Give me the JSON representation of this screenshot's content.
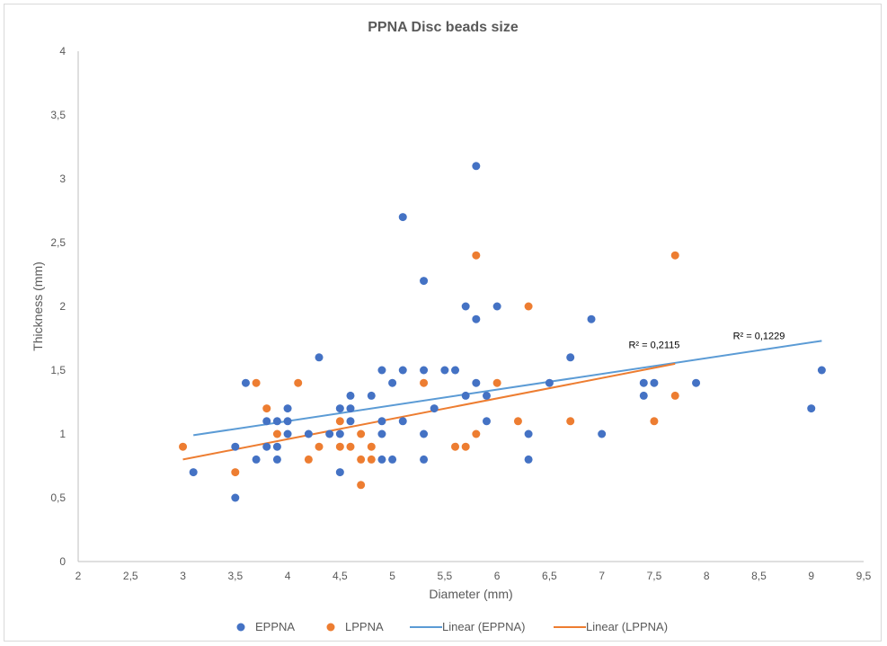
{
  "chart_data": {
    "type": "scatter",
    "title": "PPNA Disc beads size",
    "xlabel": "Diameter (mm)",
    "ylabel": "Thickness (mm)",
    "xlim": [
      2,
      9.5
    ],
    "ylim": [
      0,
      4
    ],
    "x_ticks": [
      "2",
      "2,5",
      "3",
      "3,5",
      "4",
      "4,5",
      "5",
      "5,5",
      "6",
      "6,5",
      "7",
      "7,5",
      "8",
      "8,5",
      "9",
      "9,5"
    ],
    "y_ticks": [
      "0",
      "0,5",
      "1",
      "1,5",
      "2",
      "2,5",
      "3",
      "3,5",
      "4"
    ],
    "grid": false,
    "legend_position": "bottom",
    "series": [
      {
        "name": "EPPNA",
        "color": "#4472C4",
        "points": [
          [
            3.1,
            0.7
          ],
          [
            3.5,
            0.9
          ],
          [
            3.5,
            0.5
          ],
          [
            3.6,
            1.4
          ],
          [
            3.7,
            0.8
          ],
          [
            3.8,
            1.1
          ],
          [
            3.8,
            0.9
          ],
          [
            3.9,
            1.1
          ],
          [
            3.9,
            0.9
          ],
          [
            3.9,
            0.8
          ],
          [
            4.0,
            1.2
          ],
          [
            4.0,
            1.1
          ],
          [
            4.0,
            1.0
          ],
          [
            4.2,
            1.0
          ],
          [
            4.3,
            1.6
          ],
          [
            4.4,
            1.0
          ],
          [
            4.5,
            1.2
          ],
          [
            4.5,
            1.0
          ],
          [
            4.5,
            0.7
          ],
          [
            4.6,
            1.3
          ],
          [
            4.6,
            1.2
          ],
          [
            4.6,
            1.1
          ],
          [
            4.8,
            1.3
          ],
          [
            4.9,
            1.5
          ],
          [
            4.9,
            1.1
          ],
          [
            4.9,
            1.0
          ],
          [
            4.9,
            0.8
          ],
          [
            5.0,
            1.4
          ],
          [
            5.0,
            0.8
          ],
          [
            5.1,
            2.7
          ],
          [
            5.1,
            1.5
          ],
          [
            5.1,
            1.1
          ],
          [
            5.3,
            2.2
          ],
          [
            5.3,
            1.5
          ],
          [
            5.3,
            1.0
          ],
          [
            5.3,
            0.8
          ],
          [
            5.4,
            1.2
          ],
          [
            5.5,
            1.5
          ],
          [
            5.6,
            1.5
          ],
          [
            5.7,
            2.0
          ],
          [
            5.7,
            1.3
          ],
          [
            5.8,
            3.1
          ],
          [
            5.8,
            1.9
          ],
          [
            5.8,
            1.4
          ],
          [
            5.9,
            1.3
          ],
          [
            5.9,
            1.1
          ],
          [
            6.0,
            2.0
          ],
          [
            6.3,
            1.0
          ],
          [
            6.3,
            0.8
          ],
          [
            6.5,
            1.4
          ],
          [
            6.7,
            1.6
          ],
          [
            6.9,
            1.9
          ],
          [
            7.0,
            1.0
          ],
          [
            7.4,
            1.4
          ],
          [
            7.4,
            1.3
          ],
          [
            7.5,
            1.4
          ],
          [
            7.9,
            1.4
          ],
          [
            9.0,
            1.2
          ],
          [
            9.1,
            1.5
          ]
        ]
      },
      {
        "name": "LPPNA",
        "color": "#ED7D31",
        "points": [
          [
            3.0,
            0.9
          ],
          [
            3.5,
            0.7
          ],
          [
            3.7,
            1.4
          ],
          [
            3.8,
            1.2
          ],
          [
            3.9,
            1.0
          ],
          [
            4.1,
            1.4
          ],
          [
            4.2,
            0.8
          ],
          [
            4.3,
            0.9
          ],
          [
            4.5,
            1.1
          ],
          [
            4.5,
            0.9
          ],
          [
            4.6,
            0.9
          ],
          [
            4.7,
            1.0
          ],
          [
            4.7,
            0.8
          ],
          [
            4.7,
            0.6
          ],
          [
            4.8,
            0.9
          ],
          [
            4.8,
            0.8
          ],
          [
            5.3,
            1.4
          ],
          [
            5.6,
            0.9
          ],
          [
            5.7,
            0.9
          ],
          [
            5.8,
            2.4
          ],
          [
            5.8,
            1.0
          ],
          [
            6.0,
            1.4
          ],
          [
            6.2,
            1.1
          ],
          [
            6.3,
            2.0
          ],
          [
            6.7,
            1.1
          ],
          [
            7.5,
            1.1
          ],
          [
            7.7,
            2.4
          ],
          [
            7.7,
            1.3
          ]
        ]
      }
    ],
    "trendlines": [
      {
        "name": "Linear (EPPNA)",
        "color": "#5B9BD5",
        "x": [
          3.1,
          9.1
        ],
        "y": [
          0.99,
          1.73
        ],
        "r2_label": "R² = 0,1229",
        "r2_anchor": [
          8.5,
          1.73
        ]
      },
      {
        "name": "Linear (LPPNA)",
        "color": "#ED7D31",
        "x": [
          3.0,
          7.7
        ],
        "y": [
          0.8,
          1.55
        ],
        "r2_label": "R² = 0,2115",
        "r2_anchor": [
          7.5,
          1.66
        ]
      }
    ]
  }
}
